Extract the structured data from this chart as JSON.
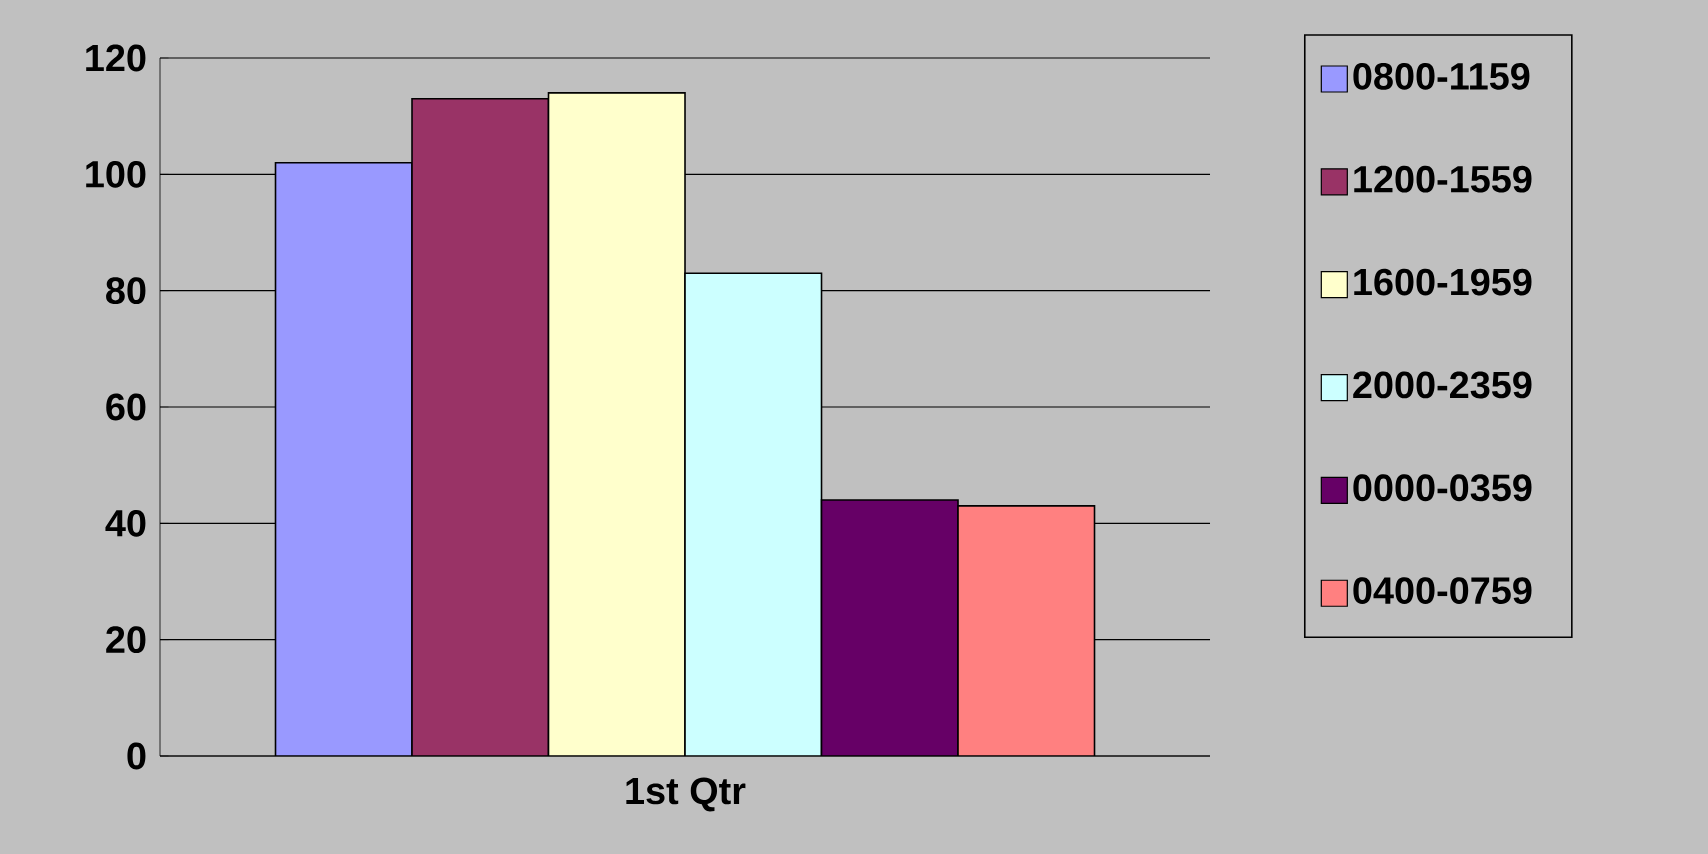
{
  "chart_data": {
    "type": "bar",
    "categories": [
      "1st Qtr"
    ],
    "series": [
      {
        "name": "0800-1159",
        "color": "#9999ff",
        "values": [
          102
        ]
      },
      {
        "name": "1200-1559",
        "color": "#993366",
        "values": [
          113
        ]
      },
      {
        "name": "1600-1959",
        "color": "#ffffcc",
        "values": [
          114
        ]
      },
      {
        "name": "2000-2359",
        "color": "#ccffff",
        "values": [
          83
        ]
      },
      {
        "name": "0000-0359",
        "color": "#660066",
        "values": [
          44
        ]
      },
      {
        "name": "0400-0759",
        "color": "#ff8080",
        "values": [
          43
        ]
      }
    ],
    "ylim": [
      0,
      120
    ],
    "yticks": [
      0,
      20,
      40,
      60,
      80,
      100,
      120
    ],
    "grid": "y",
    "legend": "right"
  }
}
